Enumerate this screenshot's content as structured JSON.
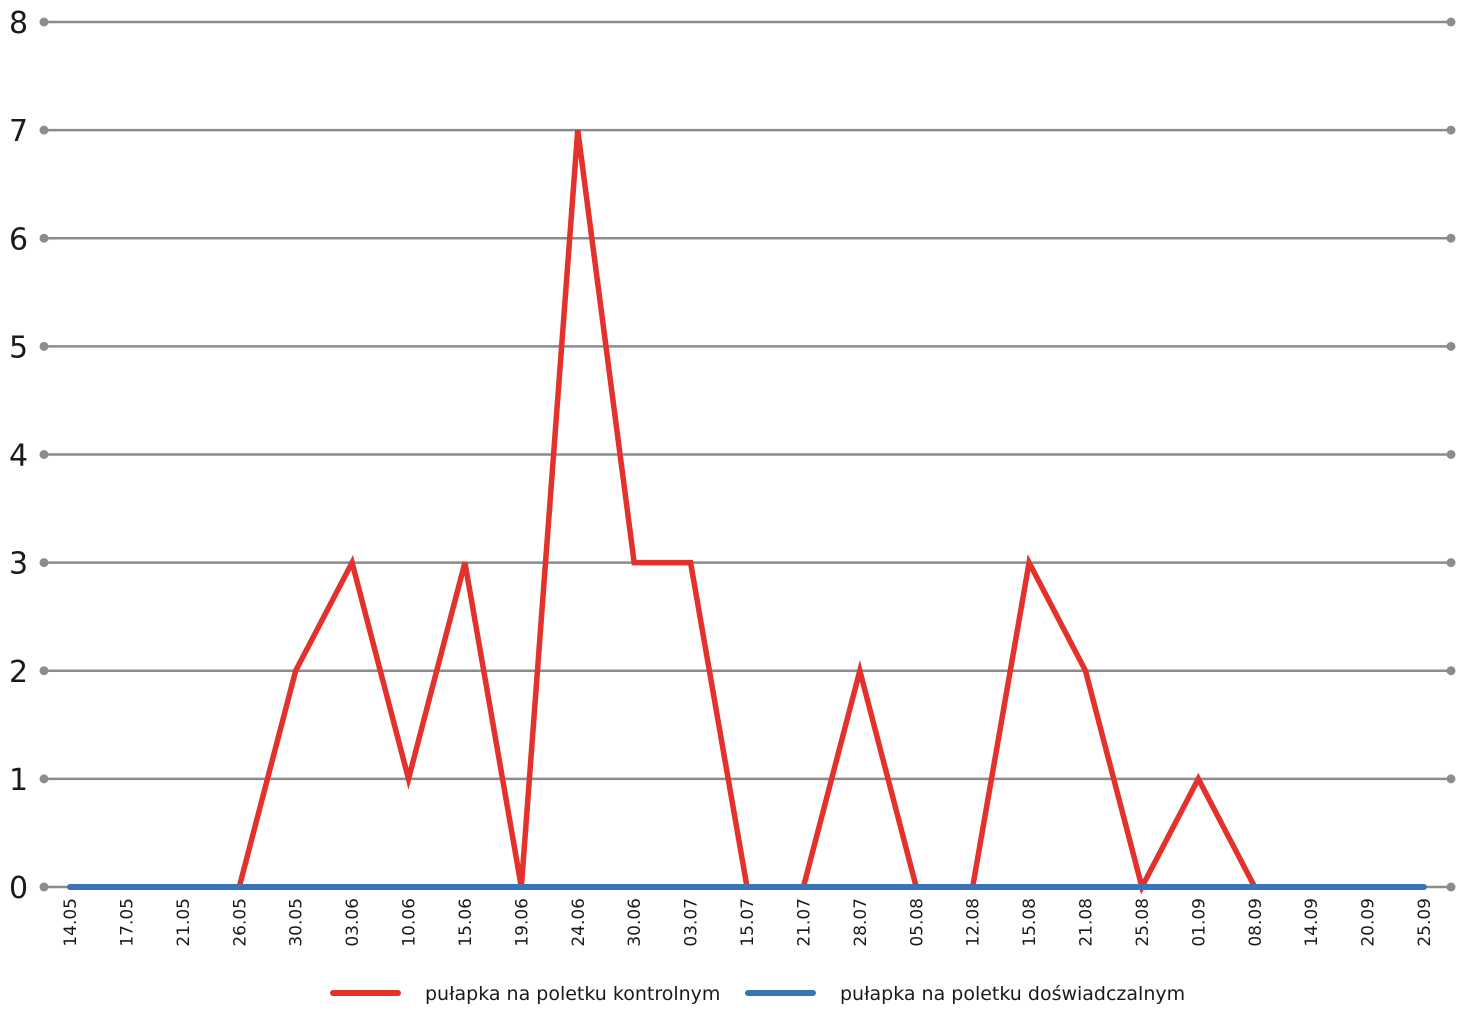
{
  "chart_data": {
    "type": "line",
    "categories": [
      "14.05",
      "17.05",
      "21.05",
      "26.05",
      "30.05",
      "03.06",
      "10.06",
      "15.06",
      "19.06",
      "24.06",
      "30.06",
      "03.07",
      "15.07",
      "21.07",
      "28.07",
      "05.08",
      "12.08",
      "15.08",
      "21.08",
      "25.08",
      "01.09",
      "08.09",
      "14.09",
      "20.09",
      "25.09"
    ],
    "series": [
      {
        "name": "pułapka na poletku kontrolnym",
        "color": "#e3312b",
        "values": [
          0,
          0,
          0,
          0,
          2,
          3,
          1,
          3,
          0,
          7,
          3,
          3,
          0,
          0,
          2,
          0,
          0,
          3,
          2,
          0,
          1,
          0,
          0,
          0,
          0
        ]
      },
      {
        "name": "pułapka na poletku doświadczalnym",
        "color": "#3a74b8",
        "values": [
          0,
          0,
          0,
          0,
          0,
          0,
          0,
          0,
          0,
          0,
          0,
          0,
          0,
          0,
          0,
          0,
          0,
          0,
          0,
          0,
          0,
          0,
          0,
          0,
          0
        ]
      }
    ],
    "yticks": [
      "0",
      "1",
      "2",
      "3",
      "4",
      "5",
      "6",
      "7",
      "8"
    ],
    "ylim": [
      0,
      8
    ],
    "grid": true,
    "gridColor": "#8c8c8c",
    "legend": "bottom"
  }
}
